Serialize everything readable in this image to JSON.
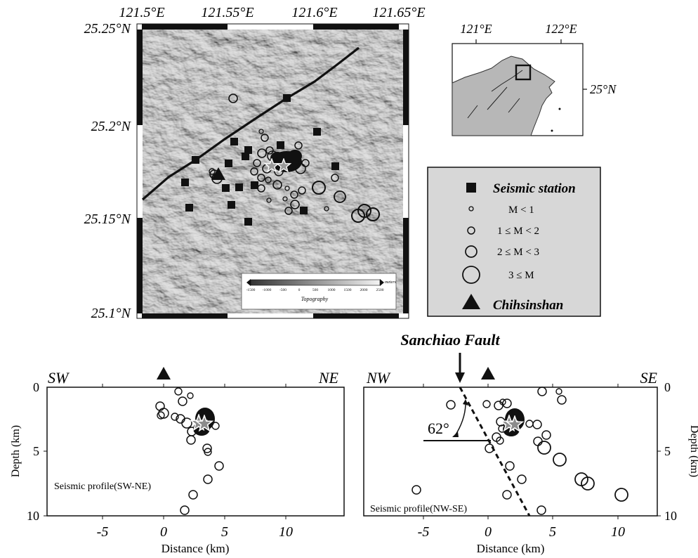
{
  "main_map": {
    "lon_labels": [
      "121.5°E",
      "121.55°E",
      "121.6°E",
      "121.65°E"
    ],
    "lat_labels": [
      "25.25°N",
      "25.2°N",
      "25.15°N",
      "25.1°N"
    ],
    "fault_name": "Sanchiao Fault"
  },
  "inset_map": {
    "lon_labels": [
      "121°E",
      "122°E"
    ],
    "lat_labels": [
      "25°N"
    ]
  },
  "topography_scale": {
    "title": "Topography",
    "unit": "meters",
    "ticks": [
      "-1500",
      "-1000",
      "-500",
      "0",
      "500",
      "1000",
      "1500",
      "2000",
      "2500"
    ]
  },
  "legend": {
    "station": "Seismic station",
    "m_lt_1": "M < 1",
    "m_1_2": "1 ≤ M < 2",
    "m_2_3": "2 ≤ M < 3",
    "m_ge_3": "3 ≤ M",
    "volcano": "Chihsinshan"
  },
  "profiles": [
    {
      "id": "sw-ne",
      "left_dir": "SW",
      "right_dir": "NE",
      "caption": "Seismic profile(SW-NE)",
      "x_ticks": [
        "-5",
        "0",
        "5",
        "10"
      ],
      "y_ticks": [
        "0",
        "5",
        "10"
      ],
      "xlabel": "Distance (km)",
      "ylabel": "Depth (km)"
    },
    {
      "id": "nw-se",
      "left_dir": "NW",
      "right_dir": "SE",
      "caption": "Seismic profile(NW-SE)",
      "x_ticks": [
        "-5",
        "0",
        "5",
        "10"
      ],
      "y_ticks": [
        "0",
        "5",
        "10"
      ],
      "xlabel": "Distance (km)",
      "ylabel": "Depth (km)",
      "dip_angle": "62°"
    }
  ],
  "colors": {
    "relief_base": "#b4b4b4",
    "legend_bg": "#d7d7d7",
    "ink": "#111111",
    "star_fill": "#8c8c8c"
  }
}
